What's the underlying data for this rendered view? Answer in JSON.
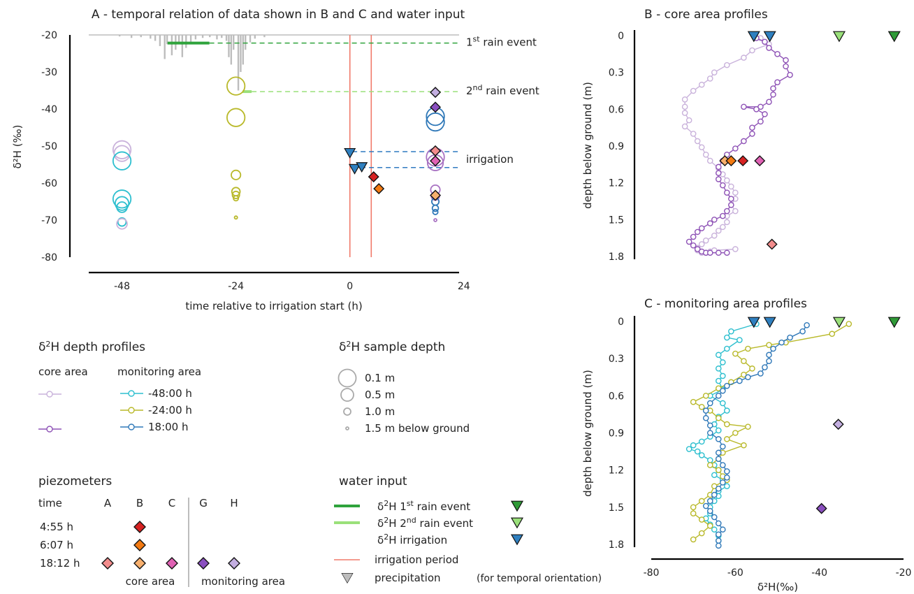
{
  "chart_data": [
    {
      "id": "A",
      "type": "scatter",
      "title": "A - temporal relation of data shown in B and C and water input",
      "xlabel": "time relative to irrigation start (h)",
      "ylabel": "δ²H (‰)",
      "xlim": [
        -55,
        23
      ],
      "ylim": [
        -80,
        -20
      ],
      "xticks": [
        -48,
        -24,
        0,
        24
      ],
      "yticks": [
        -20,
        -30,
        -40,
        -50,
        -60,
        -70,
        -80
      ],
      "irrigation_period": [
        0,
        4.5
      ],
      "rain_events": [
        {
          "label": "1st rain event",
          "value": -22.2,
          "t_start": -38.4,
          "t_end": -29.6
        },
        {
          "label": "2nd rain event",
          "value": -35.3,
          "t_start": -22.6,
          "t_end": -20.7
        }
      ],
      "irrigation_lines": [
        -51.5,
        -55.8
      ],
      "precipitation_bars": [
        {
          "t": -48.5,
          "h": 0.4
        },
        {
          "t": -46.0,
          "h": 0.8
        },
        {
          "t": -44.0,
          "h": 0.6
        },
        {
          "t": -42.0,
          "h": 1.0
        },
        {
          "t": -41.0,
          "h": 1.6
        },
        {
          "t": -40.0,
          "h": 3.0
        },
        {
          "t": -39.0,
          "h": 6.5
        },
        {
          "t": -38.5,
          "h": 2.5
        },
        {
          "t": -37.5,
          "h": 5.5
        },
        {
          "t": -36.7,
          "h": 4.0
        },
        {
          "t": -36.0,
          "h": 2.0
        },
        {
          "t": -35.3,
          "h": 6.0
        },
        {
          "t": -34.5,
          "h": 3.5
        },
        {
          "t": -33.5,
          "h": 2.0
        },
        {
          "t": -32.5,
          "h": 1.2
        },
        {
          "t": -31.0,
          "h": 0.8
        },
        {
          "t": -29.5,
          "h": 0.6
        },
        {
          "t": -28.0,
          "h": 1.2
        },
        {
          "t": -27.0,
          "h": 0.8
        },
        {
          "t": -26.0,
          "h": 1.6
        },
        {
          "t": -25.5,
          "h": 6.0
        },
        {
          "t": -25.0,
          "h": 8.0
        },
        {
          "t": -24.5,
          "h": 4.0
        },
        {
          "t": -23.5,
          "h": 15.0
        },
        {
          "t": -23.0,
          "h": 10.0
        },
        {
          "t": -22.5,
          "h": 8.0
        },
        {
          "t": -22.0,
          "h": 4.0
        },
        {
          "t": -21.0,
          "h": 2.0
        },
        {
          "t": -20.0,
          "h": 1.0
        },
        {
          "t": -18.0,
          "h": 0.6
        }
      ],
      "circles": [
        {
          "t": -48,
          "v": -51.0,
          "d": 0.1,
          "c": "#c9b2db"
        },
        {
          "t": -48,
          "v": -52.0,
          "d": 0.3,
          "c": "#c9b2db"
        },
        {
          "t": -48,
          "v": -54.0,
          "d": 0.1,
          "c": "#2dbfcf"
        },
        {
          "t": -48,
          "v": -64.3,
          "d": 0.1,
          "c": "#2dbfcf"
        },
        {
          "t": -48,
          "v": -65.5,
          "d": 0.5,
          "c": "#2dbfcf"
        },
        {
          "t": -48,
          "v": -66.5,
          "d": 0.8,
          "c": "#2dbfcf"
        },
        {
          "t": -48,
          "v": -70.5,
          "d": 1.0,
          "c": "#2dbfcf"
        },
        {
          "t": -48,
          "v": -71.0,
          "d": 0.8,
          "c": "#c9b2db"
        },
        {
          "t": -24,
          "v": -33.8,
          "d": 0.1,
          "c": "#b9b92a"
        },
        {
          "t": -24,
          "v": -42.3,
          "d": 0.1,
          "c": "#b9b92a"
        },
        {
          "t": -24,
          "v": -57.8,
          "d": 0.9,
          "c": "#b9b92a"
        },
        {
          "t": -24,
          "v": -62.3,
          "d": 1.0,
          "c": "#b9b92a"
        },
        {
          "t": -24,
          "v": -63.2,
          "d": 1.1,
          "c": "#b9b92a"
        },
        {
          "t": -24,
          "v": -64.1,
          "d": 1.3,
          "c": "#b9b92a"
        },
        {
          "t": -24,
          "v": -69.3,
          "d": 1.5,
          "c": "#b9b92a"
        },
        {
          "t": 18,
          "v": -42.0,
          "d": 0.1,
          "c": "#2f78b8"
        },
        {
          "t": 18,
          "v": -43.5,
          "d": 0.1,
          "c": "#2f78b8"
        },
        {
          "t": 18,
          "v": -53.0,
          "d": 0.1,
          "c": "#a872c2"
        },
        {
          "t": 18,
          "v": -54.5,
          "d": 0.3,
          "c": "#a872c2"
        },
        {
          "t": 18,
          "v": -61.8,
          "d": 0.9,
          "c": "#a872c2"
        },
        {
          "t": 18,
          "v": -63.5,
          "d": 1.0,
          "c": "#a872c2"
        },
        {
          "t": 18,
          "v": -65.0,
          "d": 1.1,
          "c": "#2f78b8"
        },
        {
          "t": 18,
          "v": -66.8,
          "d": 1.2,
          "c": "#2f78b8"
        },
        {
          "t": 18,
          "v": -67.8,
          "d": 1.3,
          "c": "#2f78b8"
        },
        {
          "t": 18,
          "v": -70.0,
          "d": 1.6,
          "c": "#a872c2"
        }
      ],
      "diamonds": [
        {
          "t": 18,
          "v": -35.5,
          "c": "#c3aee0"
        },
        {
          "t": 18,
          "v": -39.5,
          "c": "#8a4fbf"
        },
        {
          "t": 18,
          "v": -51.3,
          "c": "#f28c8c"
        },
        {
          "t": 18,
          "v": -54.0,
          "c": "#e062b4"
        },
        {
          "t": 18,
          "v": -63.3,
          "c": "#f8b06e"
        },
        {
          "t": 5.0,
          "v": -58.3,
          "c": "#d62222"
        },
        {
          "t": 6.1,
          "v": -61.5,
          "c": "#f37a12"
        }
      ],
      "triangles": [
        {
          "t": 0,
          "v": -51.5,
          "c": "#2f80c0"
        },
        {
          "t": 1,
          "v": -55.8,
          "c": "#2f80c0"
        },
        {
          "t": 2.5,
          "v": -55.3,
          "c": "#2f80c0"
        }
      ],
      "annotations": [
        {
          "base": "1",
          "sup": "st",
          "text": " rain event"
        },
        {
          "base": "2",
          "sup": "nd",
          "text": " rain event"
        },
        {
          "base": "",
          "sup": "",
          "text": "irrigation"
        }
      ]
    },
    {
      "id": "B",
      "type": "line",
      "title": "B - core area profiles",
      "ylabel": "depth below ground (m)",
      "xlim": [
        -80,
        -20
      ],
      "ylim": [
        0,
        1.8
      ],
      "yticks": [
        0,
        0.3,
        0.6,
        0.9,
        1.2,
        1.5,
        1.8
      ],
      "series": [
        {
          "color": "#c9b2db",
          "x": [
            -54,
            -52,
            -56,
            -58,
            -62,
            -65,
            -66,
            -68,
            -70,
            -72,
            -72,
            -72,
            -71,
            -72,
            -70,
            -69,
            -68,
            -67,
            -66,
            -64,
            -63,
            -62,
            -61,
            -60,
            -60,
            -61,
            -60,
            -62,
            -62,
            -63,
            -64,
            -65,
            -67,
            -68,
            -69,
            -69,
            -68,
            -67,
            -66,
            -65,
            -60
          ],
          "y": [
            0.02,
            0.07,
            0.12,
            0.18,
            0.24,
            0.3,
            0.35,
            0.4,
            0.45,
            0.52,
            0.58,
            0.63,
            0.69,
            0.74,
            0.8,
            0.86,
            0.91,
            0.97,
            1.02,
            1.08,
            1.13,
            1.18,
            1.23,
            1.28,
            1.33,
            1.38,
            1.43,
            1.47,
            1.52,
            1.56,
            1.59,
            1.63,
            1.67,
            1.7,
            1.73,
            1.75,
            1.77,
            1.77,
            1.76,
            1.75,
            1.74
          ]
        },
        {
          "color": "#8e52b6",
          "x": [
            -55,
            -53,
            -52,
            -50,
            -48,
            -48,
            -47,
            -50,
            -51,
            -51,
            -52,
            -54,
            -58,
            -55,
            -53,
            -54,
            -56,
            -56,
            -58,
            -60,
            -62,
            -63,
            -64,
            -64,
            -64,
            -63,
            -62,
            -61,
            -61,
            -62,
            -63,
            -65,
            -66,
            -68,
            -69,
            -70,
            -71,
            -70,
            -69,
            -68,
            -67,
            -66,
            -64,
            -62
          ],
          "y": [
            0.02,
            0.05,
            0.1,
            0.15,
            0.2,
            0.25,
            0.32,
            0.38,
            0.43,
            0.48,
            0.54,
            0.58,
            0.58,
            0.6,
            0.64,
            0.7,
            0.75,
            0.8,
            0.86,
            0.92,
            0.97,
            1.02,
            1.07,
            1.12,
            1.17,
            1.22,
            1.28,
            1.33,
            1.38,
            1.43,
            1.47,
            1.5,
            1.53,
            1.57,
            1.6,
            1.64,
            1.68,
            1.71,
            1.74,
            1.76,
            1.77,
            1.77,
            1.77,
            1.77
          ]
        }
      ],
      "diamonds": [
        {
          "x": -62.5,
          "y": 1.02,
          "c": "#f8b06e"
        },
        {
          "x": -61.0,
          "y": 1.02,
          "c": "#f37a12"
        },
        {
          "x": -58.2,
          "y": 1.02,
          "c": "#d62222"
        },
        {
          "x": -54.2,
          "y": 1.02,
          "c": "#e062b4"
        },
        {
          "x": -51.3,
          "y": 1.7,
          "c": "#f28c8c"
        }
      ],
      "triangles": [
        {
          "x": -55.6,
          "y": 0.0,
          "c": "#2f80c0"
        },
        {
          "x": -51.8,
          "y": 0.0,
          "c": "#2f80c0"
        },
        {
          "x": -35.3,
          "y": 0.0,
          "c": "#9ae07a"
        },
        {
          "x": -22.2,
          "y": 0.0,
          "c": "#2f9a37"
        }
      ]
    },
    {
      "id": "C",
      "type": "line",
      "title": "C - monitoring area profiles",
      "xlabel": "δ²H(‰)",
      "ylabel": "depth below ground (m)",
      "xlim": [
        -80,
        -20
      ],
      "ylim": [
        0,
        1.8
      ],
      "xticks": [
        -80,
        -60,
        -40,
        -20
      ],
      "yticks": [
        0,
        0.3,
        0.6,
        0.9,
        1.2,
        1.5,
        1.8
      ],
      "series": [
        {
          "color": "#2dbfcf",
          "x": [
            -55,
            -61,
            -62,
            -59,
            -62,
            -64,
            -63,
            -64,
            -63,
            -64,
            -63,
            -66,
            -63,
            -62,
            -64,
            -65,
            -64,
            -66,
            -68,
            -70,
            -71,
            -69,
            -68,
            -66,
            -65,
            -64,
            -65,
            -63,
            -62,
            -64,
            -64,
            -65,
            -66,
            -66,
            -67,
            -66,
            -65,
            -64,
            -64
          ],
          "y": [
            0.02,
            0.08,
            0.13,
            0.15,
            0.22,
            0.27,
            0.33,
            0.38,
            0.44,
            0.48,
            0.55,
            0.6,
            0.66,
            0.72,
            0.77,
            0.83,
            0.88,
            0.93,
            0.97,
            1.0,
            1.03,
            1.05,
            1.08,
            1.12,
            1.16,
            1.2,
            1.24,
            1.28,
            1.33,
            1.37,
            1.41,
            1.45,
            1.5,
            1.55,
            1.59,
            1.64,
            1.68,
            1.73,
            1.77
          ]
        },
        {
          "color": "#b9b92a",
          "x": [
            -33,
            -37,
            -48,
            -52,
            -57,
            -60,
            -58,
            -56,
            -58,
            -61,
            -64,
            -67,
            -70,
            -68,
            -66,
            -64,
            -62,
            -57,
            -60,
            -62,
            -58,
            -63,
            -64,
            -66,
            -64,
            -63,
            -62,
            -65,
            -66,
            -68,
            -70,
            -70,
            -68,
            -66,
            -68,
            -70
          ],
          "y": [
            0.02,
            0.1,
            0.17,
            0.19,
            0.22,
            0.26,
            0.32,
            0.38,
            0.43,
            0.49,
            0.54,
            0.6,
            0.65,
            0.69,
            0.72,
            0.78,
            0.83,
            0.85,
            0.9,
            0.95,
            1.0,
            1.06,
            1.11,
            1.16,
            1.2,
            1.25,
            1.28,
            1.33,
            1.4,
            1.45,
            1.5,
            1.55,
            1.6,
            1.65,
            1.71,
            1.76
          ]
        },
        {
          "color": "#2f78b8",
          "x": [
            -43,
            -44,
            -47,
            -49,
            -51,
            -52,
            -52,
            -53,
            -54,
            -57,
            -59,
            -62,
            -63,
            -64,
            -66,
            -67,
            -67,
            -66,
            -66,
            -64,
            -63,
            -64,
            -64,
            -63,
            -62,
            -62,
            -63,
            -64,
            -65,
            -66,
            -67,
            -66,
            -65,
            -64,
            -63,
            -64,
            -64,
            -64
          ],
          "y": [
            0.03,
            0.08,
            0.13,
            0.17,
            0.22,
            0.27,
            0.32,
            0.37,
            0.42,
            0.45,
            0.48,
            0.52,
            0.56,
            0.6,
            0.66,
            0.72,
            0.78,
            0.84,
            0.9,
            0.95,
            1.01,
            1.06,
            1.11,
            1.16,
            1.21,
            1.26,
            1.3,
            1.35,
            1.4,
            1.45,
            1.49,
            1.53,
            1.58,
            1.63,
            1.68,
            1.72,
            1.77,
            1.81
          ]
        }
      ],
      "diamonds": [
        {
          "x": -35.5,
          "y": 0.83,
          "c": "#c3aee0"
        },
        {
          "x": -39.5,
          "y": 1.51,
          "c": "#8a4fbf"
        }
      ],
      "triangles": [
        {
          "x": -55.6,
          "y": 0.0,
          "c": "#2f80c0"
        },
        {
          "x": -51.8,
          "y": 0.0,
          "c": "#2f80c0"
        },
        {
          "x": -35.3,
          "y": 0.0,
          "c": "#9ae07a"
        },
        {
          "x": -22.2,
          "y": 0.0,
          "c": "#2f9a37"
        }
      ]
    }
  ],
  "legend": {
    "profiles_title_base": "δ",
    "profiles_title_sup": "2",
    "profiles_title_rest": "H depth profiles",
    "core_area": "core area",
    "monitoring_area": "monitoring area",
    "profile_items": [
      {
        "label": "-48:00 h",
        "color": "#2dbfcf"
      },
      {
        "label": "-24:00 h",
        "color": "#b9b92a"
      },
      {
        "label": "18:00 h",
        "color": "#2f78b8"
      }
    ],
    "core_colors": [
      "#c9b2db",
      "#8e52b6"
    ],
    "depth_title_base": "δ",
    "depth_title_sup": "2",
    "depth_title_rest": "H sample depth",
    "depth_items": [
      "0.1 m",
      "0.5 m",
      "1.0 m",
      "1.5 m below ground"
    ],
    "piezometers_title": "piezometers",
    "piezo_time_label": "time",
    "piezo_cols": [
      "A",
      "B",
      "C",
      "G",
      "H"
    ],
    "piezo_rows": [
      {
        "time": "4:55 h",
        "cells": [
          null,
          "#d62222",
          null,
          null,
          null
        ]
      },
      {
        "time": "6:07 h",
        "cells": [
          null,
          "#f37a12",
          null,
          null,
          null
        ]
      },
      {
        "time": "18:12 h",
        "cells": [
          "#f28c8c",
          "#f8b06e",
          "#e062b4",
          "#8a4fbf",
          "#c3aee0"
        ]
      }
    ],
    "piezo_core": "core area",
    "piezo_monitoring": "monitoring area",
    "water_title": "water input",
    "water_items": [
      {
        "pre": "δ",
        "sup1": "2",
        "mid": "H  1",
        "sup2": "st",
        "post": " rain event",
        "line": "#2fa33c",
        "tri": "#2f9a37"
      },
      {
        "pre": "δ",
        "sup1": "2",
        "mid": "H  2",
        "sup2": "nd",
        "post": " rain event",
        "line": "#9ae07a",
        "tri": "#9ae07a"
      },
      {
        "pre": "δ",
        "sup1": "2",
        "mid": "H  irrigation",
        "sup2": "",
        "post": "",
        "line": "",
        "tri": "#2f80c0"
      }
    ],
    "irrigation_period_label": "irrigation period",
    "precip_label": "precipitation",
    "precip_note": "(for temporal orientation)"
  }
}
